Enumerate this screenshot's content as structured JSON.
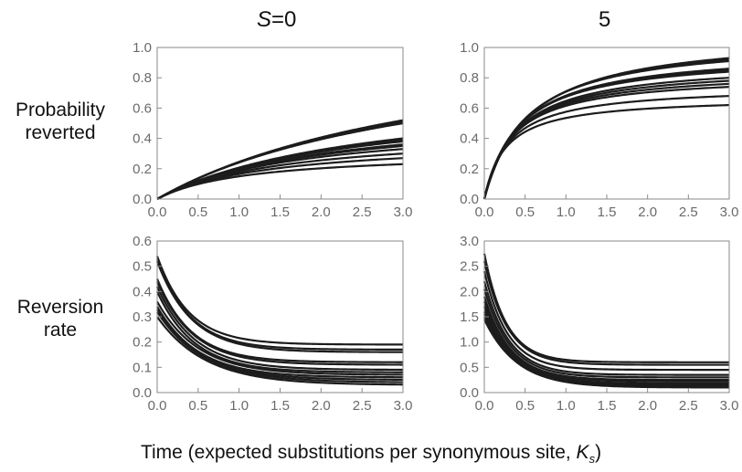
{
  "columns": {
    "left_title_var": "S",
    "left_title_eq": "=0",
    "right_title": "5"
  },
  "rows": {
    "top_label_line1": "Probability",
    "top_label_line2": "reverted",
    "bottom_label_line1": "Reversion",
    "bottom_label_line2": "rate"
  },
  "xlabel_main": "Time (expected substitutions per synonymous site, ",
  "xlabel_var": "K",
  "xlabel_sub": "s",
  "xlabel_end": ")",
  "chart_data": [
    {
      "type": "line",
      "panel": "top-left",
      "xlim": [
        0,
        3
      ],
      "ylim": [
        0,
        1
      ],
      "xticks": [
        "0.0",
        "0.5",
        "1.0",
        "1.5",
        "2.0",
        "2.5",
        "3.0"
      ],
      "yticks": [
        "0.0",
        "0.2",
        "0.4",
        "0.6",
        "0.8",
        "1.0"
      ],
      "kind": "prob",
      "curves": [
        {
          "end": 0.52,
          "tau": 3.8
        },
        {
          "end": 0.51,
          "tau": 3.6
        },
        {
          "end": 0.5,
          "tau": 3.5
        },
        {
          "end": 0.4,
          "tau": 2.6
        },
        {
          "end": 0.39,
          "tau": 2.4
        },
        {
          "end": 0.38,
          "tau": 2.3
        },
        {
          "end": 0.36,
          "tau": 2.1
        },
        {
          "end": 0.35,
          "tau": 2.0
        },
        {
          "end": 0.33,
          "tau": 1.8
        },
        {
          "end": 0.3,
          "tau": 1.6
        },
        {
          "end": 0.27,
          "tau": 1.4
        },
        {
          "end": 0.23,
          "tau": 1.1
        }
      ]
    },
    {
      "type": "line",
      "panel": "top-right",
      "xlim": [
        0,
        3
      ],
      "ylim": [
        0,
        1
      ],
      "xticks": [
        "0.0",
        "0.5",
        "1.0",
        "1.5",
        "2.0",
        "2.5",
        "3.0"
      ],
      "yticks": [
        "0.0",
        "0.2",
        "0.4",
        "0.6",
        "0.8",
        "1.0"
      ],
      "kind": "prob",
      "curves": [
        {
          "end": 0.93,
          "tau": 0.55
        },
        {
          "end": 0.92,
          "tau": 0.52
        },
        {
          "end": 0.91,
          "tau": 0.5
        },
        {
          "end": 0.86,
          "tau": 0.45
        },
        {
          "end": 0.85,
          "tau": 0.44
        },
        {
          "end": 0.84,
          "tau": 0.42
        },
        {
          "end": 0.8,
          "tau": 0.4
        },
        {
          "end": 0.78,
          "tau": 0.38
        },
        {
          "end": 0.76,
          "tau": 0.36
        },
        {
          "end": 0.74,
          "tau": 0.34
        },
        {
          "end": 0.68,
          "tau": 0.3
        },
        {
          "end": 0.62,
          "tau": 0.26
        }
      ]
    },
    {
      "type": "line",
      "panel": "bottom-left",
      "xlim": [
        0,
        3
      ],
      "ylim": [
        0,
        0.6
      ],
      "xticks": [
        "0.0",
        "0.5",
        "1.0",
        "1.5",
        "2.0",
        "2.5",
        "3.0"
      ],
      "yticks": [
        "0.0",
        "0.1",
        "0.2",
        "0.3",
        "0.4",
        "0.5",
        "0.6"
      ],
      "kind": "rate",
      "curves": [
        {
          "start": 0.54,
          "end": 0.19,
          "k": 2.6
        },
        {
          "start": 0.53,
          "end": 0.17,
          "k": 2.5
        },
        {
          "start": 0.52,
          "end": 0.16,
          "k": 2.4
        },
        {
          "start": 0.45,
          "end": 0.12,
          "k": 2.4
        },
        {
          "start": 0.44,
          "end": 0.11,
          "k": 2.3
        },
        {
          "start": 0.42,
          "end": 0.09,
          "k": 2.2
        },
        {
          "start": 0.4,
          "end": 0.08,
          "k": 2.2
        },
        {
          "start": 0.36,
          "end": 0.07,
          "k": 2.0
        },
        {
          "start": 0.34,
          "end": 0.06,
          "k": 2.0
        },
        {
          "start": 0.33,
          "end": 0.05,
          "k": 1.9
        },
        {
          "start": 0.32,
          "end": 0.04,
          "k": 1.8
        },
        {
          "start": 0.3,
          "end": 0.03,
          "k": 1.7
        }
      ]
    },
    {
      "type": "line",
      "panel": "bottom-right",
      "xlim": [
        0,
        3
      ],
      "ylim": [
        0,
        3
      ],
      "xticks": [
        "0.0",
        "0.5",
        "1.0",
        "1.5",
        "2.0",
        "2.5",
        "3.0"
      ],
      "yticks": [
        "0.0",
        "0.5",
        "1.0",
        "1.5",
        "2.0",
        "2.5",
        "3.0"
      ],
      "kind": "rate",
      "curves": [
        {
          "start": 2.75,
          "end": 0.6,
          "k": 3.8
        },
        {
          "start": 2.6,
          "end": 0.55,
          "k": 3.6
        },
        {
          "start": 2.4,
          "end": 0.45,
          "k": 3.5
        },
        {
          "start": 2.2,
          "end": 0.35,
          "k": 3.3
        },
        {
          "start": 2.05,
          "end": 0.3,
          "k": 3.2
        },
        {
          "start": 1.9,
          "end": 0.25,
          "k": 3.1
        },
        {
          "start": 1.8,
          "end": 0.22,
          "k": 3.0
        },
        {
          "start": 1.7,
          "end": 0.18,
          "k": 2.9
        },
        {
          "start": 1.6,
          "end": 0.15,
          "k": 2.8
        },
        {
          "start": 1.55,
          "end": 0.13,
          "k": 2.7
        },
        {
          "start": 1.5,
          "end": 0.11,
          "k": 2.6
        },
        {
          "start": 1.45,
          "end": 0.1,
          "k": 2.5
        }
      ]
    }
  ]
}
